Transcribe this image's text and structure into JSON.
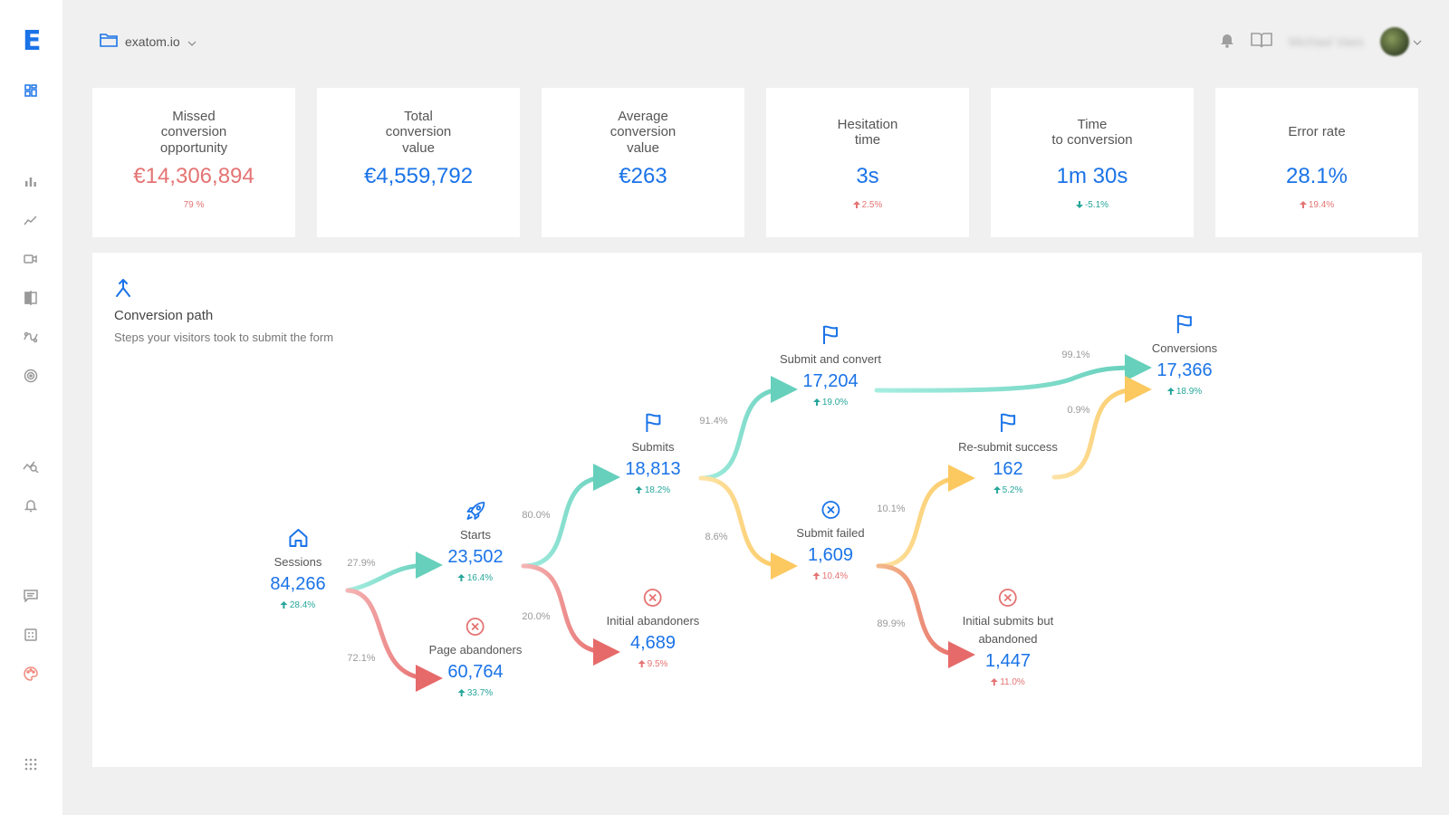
{
  "app": {
    "logo": "E"
  },
  "topbar": {
    "project": "exatom.io",
    "user_name": "Michael Vaes"
  },
  "kpis": [
    {
      "label": "Missed\nconversion\nopportunity",
      "value": "€14,306,894",
      "change": "79 %",
      "value_color": "red",
      "trend": "none"
    },
    {
      "label": "Total\nconversion\nvalue",
      "value": "€4,559,792",
      "change": "",
      "value_color": "blue",
      "trend": "none"
    },
    {
      "label": "Average\nconversion\nvalue",
      "value": "€263",
      "change": "",
      "value_color": "blue",
      "trend": "none"
    },
    {
      "label": "Hesitation\ntime",
      "value": "3s",
      "change": "2.5%",
      "value_color": "blue",
      "trend": "up"
    },
    {
      "label": "Time\nto conversion",
      "value": "1m 30s",
      "change": "-5.1%",
      "value_color": "blue",
      "trend": "down"
    },
    {
      "label": "Error rate",
      "value": "28.1%",
      "change": "19.4%",
      "value_color": "blue",
      "trend": "up"
    }
  ],
  "panel": {
    "title": "Conversion path",
    "subtitle": "Steps your visitors took to submit the form"
  },
  "nodes": {
    "sessions": {
      "label": "Sessions",
      "value": "84,266",
      "change": "28.4%",
      "change_color": "green",
      "icon": "home-icon"
    },
    "starts": {
      "label": "Starts",
      "value": "23,502",
      "change": "16.4%",
      "change_color": "green",
      "icon": "rocket-icon"
    },
    "page_abandoners": {
      "label": "Page abandoners",
      "value": "60,764",
      "change": "33.7%",
      "change_color": "green",
      "icon": "error-icon"
    },
    "submits": {
      "label": "Submits",
      "value": "18,813",
      "change": "18.2%",
      "change_color": "green",
      "icon": "flag-icon"
    },
    "initial_abandoners": {
      "label": "Initial abandoners",
      "value": "4,689",
      "change": "9.5%",
      "change_color": "red",
      "icon": "error-icon"
    },
    "submit_convert": {
      "label": "Submit and convert",
      "value": "17,204",
      "change": "19.0%",
      "change_color": "green",
      "icon": "flag-icon"
    },
    "submit_failed": {
      "label": "Submit failed",
      "value": "1,609",
      "change": "10.4%",
      "change_color": "red",
      "icon": "error-icon"
    },
    "resubmit_success": {
      "label": "Re-submit success",
      "value": "162",
      "change": "5.2%",
      "change_color": "green",
      "icon": "flag-icon"
    },
    "initial_submit_abandoned": {
      "label": "Initial submits but\nabandoned",
      "value": "1,447",
      "change": "11.0%",
      "change_color": "red",
      "icon": "error-icon"
    },
    "conversions": {
      "label": "Conversions",
      "value": "17,366",
      "change": "18.9%",
      "change_color": "green",
      "icon": "flag-icon"
    }
  },
  "flows": {
    "sessions_starts": "27.9%",
    "sessions_abandon": "72.1%",
    "starts_submits": "80.0%",
    "starts_abandon": "20.0%",
    "submits_convert": "91.4%",
    "submits_failed": "8.6%",
    "failed_resubmit": "10.1%",
    "failed_abandon": "89.9%",
    "convert_conversions": "99.1%",
    "resubmit_conversions": "0.9%"
  },
  "colors": {
    "accent": "#1a73e8",
    "green_flow": "#7ddfcc",
    "red_flow": "#ec8e8e",
    "yellow_flow": "#fdd57e",
    "negative": "#e57373",
    "positive": "#26a69a"
  }
}
